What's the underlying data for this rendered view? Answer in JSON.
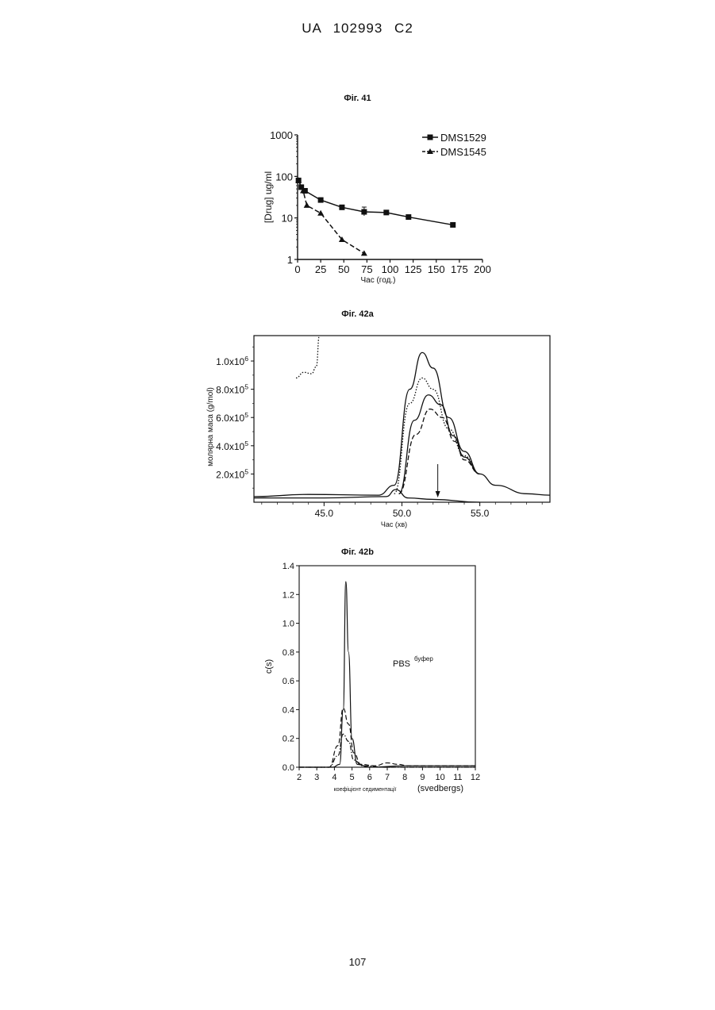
{
  "header": {
    "text": "UA   102993   C2"
  },
  "page_number": "107",
  "figures": {
    "f41_title": "Фіг. 41",
    "f42a_title": "Фіг. 42a",
    "f42b_title": "Фіг. 42b",
    "f42b_annotation": "PBS",
    "f42b_annotation_sup": "буфер"
  },
  "chart_data": [
    {
      "type": "line",
      "ylabel": "[Drug] ug/ml",
      "xlabel": "Час (год.)",
      "xlim": [
        0,
        200
      ],
      "ylim": [
        1,
        1000
      ],
      "yscale": "log",
      "xticks": [
        "0",
        "25",
        "50",
        "75",
        "100",
        "125",
        "150",
        "175",
        "200"
      ],
      "yticks": [
        "1",
        "10",
        "100",
        "1000"
      ],
      "legend_position": "top-right",
      "series": [
        {
          "name": "DMS1529",
          "marker": "square",
          "line": "solid",
          "x": [
            1,
            4,
            8,
            25,
            48,
            72,
            96,
            120,
            168
          ],
          "y": [
            80,
            55,
            45,
            27,
            18,
            14,
            13.5,
            10.5,
            6.8
          ]
        },
        {
          "name": "DMS1545",
          "marker": "triangle",
          "line": "dashed",
          "x": [
            1,
            6,
            10,
            25,
            48,
            72
          ],
          "y": [
            80,
            45,
            20,
            13,
            3,
            1.4
          ]
        }
      ]
    },
    {
      "type": "line",
      "ylabel": "молярна маса (g/mol)",
      "xlabel": "Час (хв)",
      "xlim": [
        40.5,
        59.5
      ],
      "ylim": [
        0,
        1180000
      ],
      "xticks": [
        "45.0",
        "50.0",
        "55.0"
      ],
      "yticks": [
        "2.0x10^5",
        "4.0x10^5",
        "6.0x10^5",
        "8.0x10^5",
        "1.0x10^6"
      ],
      "series": [
        {
          "line": "solid",
          "x": [
            40.5,
            44,
            48.5,
            49.5,
            50.5,
            51.3,
            52,
            53,
            54,
            55,
            56,
            58,
            59.5
          ],
          "y": [
            40000,
            55000,
            50000,
            120000,
            800000,
            1060000,
            950000,
            600000,
            360000,
            200000,
            120000,
            60000,
            50000
          ]
        },
        {
          "line": "dotted",
          "x": [
            49.5,
            50.5,
            51.3,
            52,
            53,
            54,
            55
          ],
          "y": [
            60000,
            700000,
            880000,
            800000,
            520000,
            330000,
            200000
          ]
        },
        {
          "line": "solid",
          "x": [
            49.8,
            50.8,
            51.7,
            52.5,
            53.3,
            54,
            55
          ],
          "y": [
            60000,
            580000,
            760000,
            690000,
            470000,
            320000,
            200000
          ]
        },
        {
          "line": "dashed",
          "x": [
            49.8,
            50.9,
            51.8,
            52.6,
            53.4,
            54,
            55
          ],
          "y": [
            60000,
            480000,
            660000,
            600000,
            430000,
            300000,
            200000
          ]
        },
        {
          "line": "dotted",
          "x": [
            43.2,
            43.7,
            44.2,
            44.5,
            44.7
          ],
          "y": [
            880000,
            920000,
            910000,
            960000,
            1180000
          ]
        },
        {
          "line": "solid",
          "x": [
            40.5,
            45,
            49,
            49.6,
            50.4,
            52,
            55
          ],
          "y": [
            30000,
            30000,
            40000,
            90000,
            30000,
            20000,
            0
          ]
        }
      ],
      "annotations": [
        {
          "type": "arrow",
          "x": 52.3
        }
      ]
    },
    {
      "type": "line",
      "ylabel": "c(s)",
      "xlabel": "коефіцієнт седиментації",
      "xlabel2": "(svedbergs)",
      "xlim": [
        2,
        12
      ],
      "ylim": [
        0,
        1.4
      ],
      "xticks": [
        "2",
        "3",
        "4",
        "5",
        "6",
        "7",
        "8",
        "9",
        "10",
        "11",
        "12"
      ],
      "yticks": [
        "0.0",
        "0.2",
        "0.4",
        "0.6",
        "0.8",
        "1.0",
        "1.2",
        "1.4"
      ],
      "series": [
        {
          "line": "solid",
          "x": [
            2,
            3.9,
            4.3,
            4.5,
            4.65,
            4.8,
            5.0,
            5.3,
            6,
            8,
            12
          ],
          "y": [
            0,
            0,
            0.02,
            0.4,
            1.29,
            0.8,
            0.2,
            0.02,
            0,
            0.01,
            0.01
          ]
        },
        {
          "line": "dashed",
          "x": [
            2,
            3.7,
            4.2,
            4.5,
            4.8,
            5.1,
            5.5,
            6.3,
            7,
            7.6,
            8.2,
            12
          ],
          "y": [
            0,
            0,
            0.15,
            0.41,
            0.3,
            0.1,
            0.02,
            0.01,
            0.03,
            0.02,
            0.01,
            0.01
          ]
        },
        {
          "line": "dash-dot",
          "x": [
            2,
            3.7,
            4.2,
            4.5,
            4.8,
            5.1,
            5.6,
            7,
            12
          ],
          "y": [
            0,
            0,
            0.08,
            0.23,
            0.18,
            0.05,
            0.01,
            0,
            0
          ]
        }
      ]
    }
  ]
}
